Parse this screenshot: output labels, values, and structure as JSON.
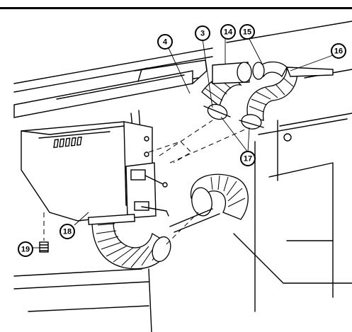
{
  "callouts": [
    {
      "id": "callout-3",
      "label": "3"
    },
    {
      "id": "callout-4",
      "label": "4"
    },
    {
      "id": "callout-14",
      "label": "14"
    },
    {
      "id": "callout-15",
      "label": "15"
    },
    {
      "id": "callout-16",
      "label": "16"
    },
    {
      "id": "callout-17",
      "label": "17"
    },
    {
      "id": "callout-18",
      "label": "18"
    },
    {
      "id": "callout-19",
      "label": "19"
    }
  ]
}
